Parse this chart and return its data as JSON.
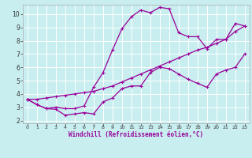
{
  "title": "",
  "xlabel": "Windchill (Refroidissement éolien,°C)",
  "ylabel": "",
  "bg_color": "#c8eef0",
  "line_color": "#990099",
  "grid_color": "#ffffff",
  "xlim": [
    -0.5,
    23.5
  ],
  "ylim": [
    1.8,
    10.7
  ],
  "yticks": [
    2,
    3,
    4,
    5,
    6,
    7,
    8,
    9,
    10
  ],
  "xticks": [
    0,
    1,
    2,
    3,
    4,
    5,
    6,
    7,
    8,
    9,
    10,
    11,
    12,
    13,
    14,
    15,
    16,
    17,
    18,
    19,
    20,
    21,
    22,
    23
  ],
  "curve_main_x": [
    0,
    1,
    2,
    3,
    4,
    5,
    6,
    7,
    8,
    9,
    10,
    11,
    12,
    13,
    14,
    15,
    16,
    17,
    18,
    19,
    20,
    21,
    22,
    23
  ],
  "curve_main_y": [
    3.6,
    3.2,
    2.9,
    3.0,
    2.9,
    2.9,
    3.1,
    4.5,
    5.6,
    7.3,
    8.9,
    9.8,
    10.3,
    10.1,
    10.5,
    10.4,
    8.6,
    8.3,
    8.3,
    7.4,
    8.1,
    8.1,
    9.3,
    9.1
  ],
  "curve_low_x": [
    0,
    1,
    2,
    3,
    4,
    5,
    6,
    7,
    8,
    9,
    10,
    11,
    12,
    13,
    14,
    15,
    16,
    17,
    18,
    19,
    20,
    21,
    22,
    23
  ],
  "curve_low_y": [
    3.6,
    3.2,
    2.9,
    2.85,
    2.4,
    2.5,
    2.6,
    2.5,
    3.4,
    3.7,
    4.4,
    4.6,
    4.6,
    5.6,
    6.0,
    5.9,
    5.5,
    5.1,
    4.8,
    4.5,
    5.5,
    5.8,
    6.0,
    7.0
  ],
  "curve_line_x": [
    0,
    1,
    2,
    3,
    4,
    5,
    6,
    7,
    8,
    9,
    10,
    11,
    12,
    13,
    14,
    15,
    16,
    17,
    18,
    19,
    20,
    21,
    22,
    23
  ],
  "curve_line_y": [
    3.6,
    3.6,
    3.7,
    3.8,
    3.9,
    4.0,
    4.1,
    4.2,
    4.4,
    4.6,
    4.9,
    5.2,
    5.5,
    5.8,
    6.1,
    6.4,
    6.7,
    7.0,
    7.3,
    7.5,
    7.8,
    8.1,
    8.7,
    9.1
  ]
}
